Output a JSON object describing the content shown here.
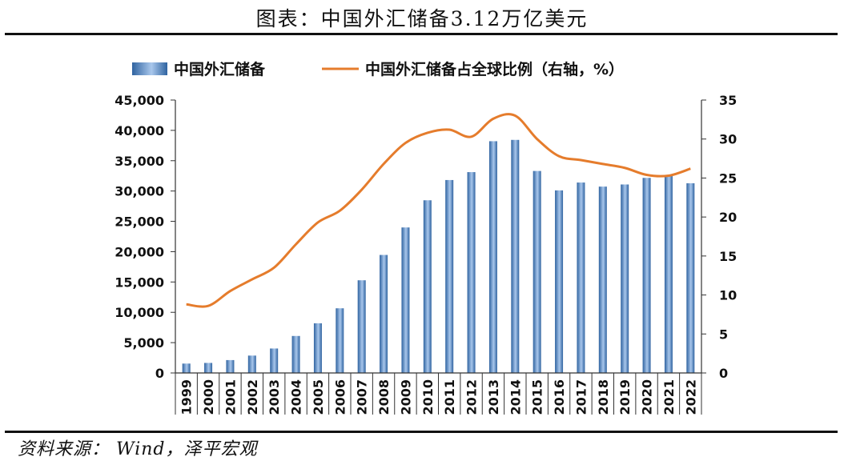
{
  "figure_title": "图表：中国外汇储备3.12万亿美元",
  "source_note": "资料来源：  Wind，泽平宏观",
  "colors": {
    "bar_dark": "#2f63a0",
    "bar_light": "#a9c7ec",
    "line": "#e57c2c",
    "axis": "#333333"
  },
  "chart_data": {
    "type": "bar",
    "title": "图表：中国外汇储备3.12万亿美元",
    "categories": [
      "1999",
      "2000",
      "2001",
      "2002",
      "2003",
      "2004",
      "2005",
      "2006",
      "2007",
      "2008",
      "2009",
      "2010",
      "2011",
      "2012",
      "2013",
      "2014",
      "2015",
      "2016",
      "2017",
      "2018",
      "2019",
      "2020",
      "2021",
      "2022"
    ],
    "series": [
      {
        "name": "中国外汇储备",
        "type": "bar",
        "axis": "left",
        "values": [
          1547,
          1656,
          2122,
          2864,
          4033,
          6099,
          8189,
          10663,
          15282,
          19460,
          23992,
          28473,
          31811,
          33116,
          38213,
          38430,
          33304,
          30105,
          31399,
          30727,
          31079,
          32165,
          32502,
          31277
        ]
      },
      {
        "name": "中国外汇储备占全球比例（右轴，%）",
        "type": "line",
        "axis": "right",
        "values": [
          8.8,
          8.6,
          10.5,
          12.0,
          13.5,
          16.5,
          19.3,
          20.8,
          23.5,
          26.8,
          29.5,
          30.8,
          31.2,
          30.3,
          32.6,
          33.0,
          30.0,
          27.8,
          27.3,
          26.8,
          26.3,
          25.4,
          25.3,
          26.2
        ]
      }
    ],
    "left_axis": {
      "min": 0,
      "max": 45000,
      "step": 5000,
      "tick_labels": [
        "0",
        "5,000",
        "10,000",
        "15,000",
        "20,000",
        "25,000",
        "30,000",
        "35,000",
        "40,000",
        "45,000"
      ]
    },
    "right_axis": {
      "min": 0,
      "max": 35,
      "step": 5,
      "tick_labels": [
        "0",
        "5",
        "10",
        "15",
        "20",
        "25",
        "30",
        "35"
      ]
    },
    "legend": {
      "position": "top",
      "items": [
        "中国外汇储备",
        "中国外汇储备占全球比例（右轴，%）"
      ]
    },
    "grid": false
  }
}
